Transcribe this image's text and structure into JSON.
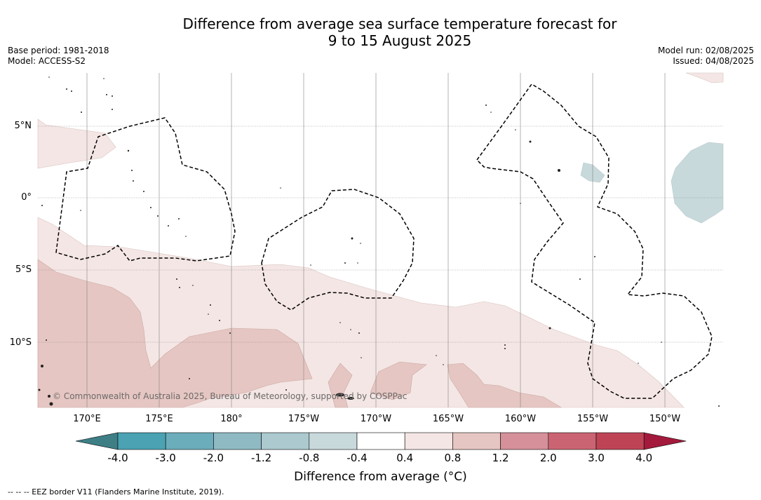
{
  "title_line1": "Difference from average sea surface temperature forecast for",
  "title_line2": "9 to 15 August 2025",
  "meta": {
    "base_period": "Base period: 1981-2018",
    "model": "Model: ACCESS-S2",
    "model_run": "Model run: 02/08/2025",
    "issued": "Issued: 04/08/2025"
  },
  "map": {
    "lat_labels": [
      "5°N",
      "0°",
      "5°S",
      "10°S"
    ],
    "lon_labels": [
      "170°E",
      "175°E",
      "180°",
      "175°W",
      "170°W",
      "165°W",
      "160°W",
      "155°W",
      "150°W"
    ],
    "copyright": "© Commonwealth of Australia 2025, Bureau of Meteorology, supported by COSPPac",
    "colors": {
      "light_warm": "#f4e6e4",
      "mid_warm": "#e6c6c2",
      "light_cool": "#c8d9dc",
      "eez_border": "#000000"
    }
  },
  "colorbar": {
    "ticks": [
      "-4.0",
      "-3.0",
      "-2.0",
      "-1.2",
      "-0.8",
      "-0.4",
      "0.4",
      "0.8",
      "1.2",
      "2.0",
      "3.0",
      "4.0"
    ],
    "colors": [
      "#3e7f86",
      "#4aa2b3",
      "#6cadbb",
      "#8fbac4",
      "#abc9ce",
      "#c8d9dc",
      "#ffffff",
      "#f4e6e4",
      "#e6c6c2",
      "#d5909a",
      "#cb6472",
      "#be4455",
      "#a31a3c"
    ],
    "label": "Difference from average (°C)"
  },
  "footnote": "--  --  -- EEZ border V11 (Flanders Marine Institute, 2019)."
}
